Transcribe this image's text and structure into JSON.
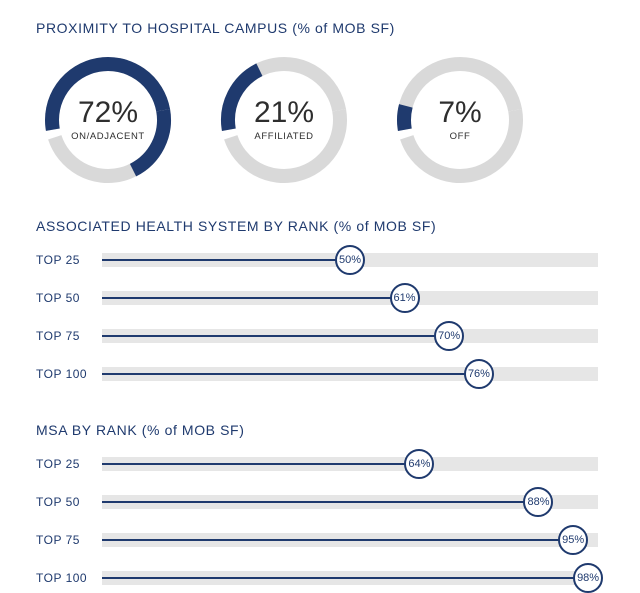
{
  "colors": {
    "accent": "#1f3a6e",
    "ring_bg": "#d9d9d9",
    "track_bg": "#e6e6e6",
    "text_dark": "#2e2e2e",
    "background": "#ffffff"
  },
  "donut_style": {
    "outer_radius": 63,
    "stroke_width": 14,
    "start_angle_deg": -100,
    "gap_deg": 8
  },
  "proximity": {
    "title_main": "PROXIMITY TO HOSPITAL CAMPUS ",
    "title_sub": "(% of MOB SF)",
    "items": [
      {
        "value_pct": 72,
        "value_text": "72%",
        "label": "ON/ADJACENT"
      },
      {
        "value_pct": 21,
        "value_text": "21%",
        "label": "AFFILIATED"
      },
      {
        "value_pct": 7,
        "value_text": "7%",
        "label": "OFF"
      }
    ]
  },
  "bar_style": {
    "track_height": 14,
    "line_height": 2,
    "knob_diameter": 30,
    "knob_border_width": 2,
    "max_pct": 100
  },
  "health_system": {
    "title_main": "ASSOCIATED HEALTH SYSTEM BY RANK ",
    "title_sub": "(% of MOB SF)",
    "rows": [
      {
        "label": "TOP 25",
        "value_pct": 50,
        "value_text": "50%"
      },
      {
        "label": "TOP 50",
        "value_pct": 61,
        "value_text": "61%"
      },
      {
        "label": "TOP 75",
        "value_pct": 70,
        "value_text": "70%"
      },
      {
        "label": "TOP 100",
        "value_pct": 76,
        "value_text": "76%"
      }
    ]
  },
  "msa": {
    "title_main": "MSA BY RANK ",
    "title_sub": "(% of MOB SF)",
    "rows": [
      {
        "label": "TOP 25",
        "value_pct": 64,
        "value_text": "64%"
      },
      {
        "label": "TOP 50",
        "value_pct": 88,
        "value_text": "88%"
      },
      {
        "label": "TOP 75",
        "value_pct": 95,
        "value_text": "95%"
      },
      {
        "label": "TOP 100",
        "value_pct": 98,
        "value_text": "98%"
      }
    ]
  }
}
